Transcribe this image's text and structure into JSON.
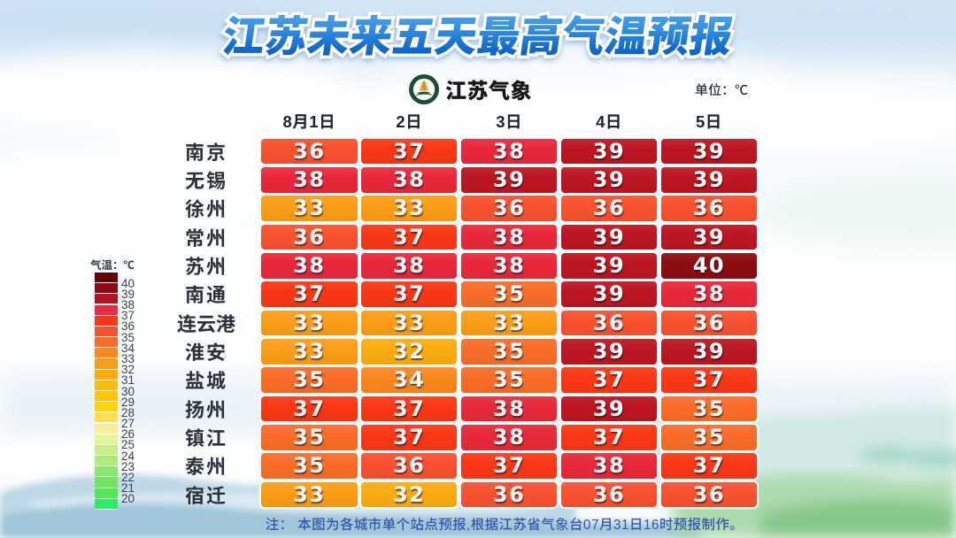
{
  "header": {
    "title": "江苏未来五天最高气温预报",
    "brand": "江苏气象",
    "unit_label": "单位：℃"
  },
  "legend": {
    "title": "气温：℃",
    "tick_labels": [
      "40",
      "39",
      "38",
      "37",
      "36",
      "35",
      "34",
      "33",
      "32",
      "31",
      "30",
      "29",
      "28",
      "27",
      "26",
      "25",
      "24",
      "23",
      "22",
      "21",
      "20"
    ],
    "segment_colors": [
      "#660007",
      "#8E0914",
      "#B8121D",
      "#EA2A3E",
      "#F93716",
      "#F85130",
      "#F96C28",
      "#FA871E",
      "#FB9D17",
      "#FCAC11",
      "#FDB90C",
      "#FDC708",
      "#FDD30A",
      "#FBDF55",
      "#F7EE9A",
      "#E4F59B",
      "#C6F087",
      "#A8EC79",
      "#8BE76C",
      "#70E562",
      "#52E754",
      "#2FEC68"
    ]
  },
  "chart_data": {
    "type": "heatmap",
    "title": "江苏未来五天最高气温预报",
    "unit": "℃",
    "columns": [
      "8月1日",
      "2日",
      "3日",
      "4日",
      "5日"
    ],
    "rows": [
      {
        "city": "南京",
        "values": [
          36,
          37,
          38,
          39,
          39
        ]
      },
      {
        "city": "无锡",
        "values": [
          38,
          38,
          39,
          39,
          39
        ]
      },
      {
        "city": "徐州",
        "values": [
          33,
          33,
          36,
          36,
          36
        ]
      },
      {
        "city": "常州",
        "values": [
          36,
          37,
          38,
          39,
          39
        ]
      },
      {
        "city": "苏州",
        "values": [
          38,
          38,
          38,
          39,
          40
        ]
      },
      {
        "city": "南通",
        "values": [
          37,
          37,
          35,
          39,
          38
        ]
      },
      {
        "city": "连云港",
        "values": [
          33,
          33,
          33,
          36,
          36
        ]
      },
      {
        "city": "淮安",
        "values": [
          33,
          32,
          35,
          39,
          39
        ]
      },
      {
        "city": "盐城",
        "values": [
          35,
          34,
          35,
          37,
          37
        ]
      },
      {
        "city": "扬州",
        "values": [
          37,
          37,
          38,
          39,
          35
        ]
      },
      {
        "city": "镇江",
        "values": [
          35,
          37,
          38,
          37,
          35
        ]
      },
      {
        "city": "泰州",
        "values": [
          35,
          36,
          37,
          38,
          37
        ]
      },
      {
        "city": "宿迁",
        "values": [
          33,
          32,
          36,
          36,
          36
        ]
      }
    ],
    "value_colors": {
      "32": "#FCAC11",
      "33": "#FB9D17",
      "34": "#FA871E",
      "35": "#F96C28",
      "36": "#F85130",
      "37": "#F93716",
      "38": "#E8283A",
      "39": "#BC1621",
      "40": "#8B0C11"
    }
  },
  "footnote": "注： 本图为各城市单个站点预报,根据江苏省气象台07月31日16时预报制作。"
}
